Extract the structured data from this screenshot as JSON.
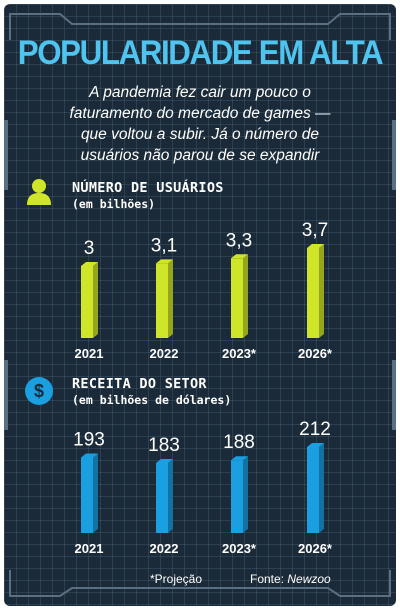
{
  "title": "POPULARIDADE EM ALTA",
  "subtitle_lines": [
    "A pandemia fez cair um pouco o",
    "faturamento do mercado de games —",
    "que voltou a subir. Já o número de",
    "usuários não parou de se expandir"
  ],
  "colors": {
    "background": "#1b2a38",
    "title": "#4fc4ef",
    "users_bar": "#cfe52a",
    "revenue_bar": "#1a9fe0"
  },
  "icons": {
    "users": "user-icon",
    "revenue": "dollar-icon"
  },
  "chart_data": [
    {
      "type": "bar",
      "title": "NÚMERO DE USUÁRIOS",
      "subtitle": "(em bilhões)",
      "categories": [
        "2021",
        "2022",
        "2023*",
        "2026*"
      ],
      "values": [
        3,
        3.1,
        3.3,
        3.7
      ],
      "value_labels": [
        "3",
        "3,1",
        "3,3",
        "3,7"
      ],
      "ylim": [
        0,
        3.7
      ],
      "grid": false
    },
    {
      "type": "bar",
      "title": "RECEITA DO SETOR",
      "subtitle": "(em bilhões de dólares)",
      "categories": [
        "2021",
        "2022",
        "2023*",
        "2026*"
      ],
      "values": [
        193,
        183,
        188,
        212
      ],
      "value_labels": [
        "193",
        "183",
        "188",
        "212"
      ],
      "ylim": [
        0,
        212
      ],
      "grid": false
    }
  ],
  "footer": {
    "note": "*Projeção",
    "source_label": "Fonte:",
    "source_name": "Newzoo"
  }
}
